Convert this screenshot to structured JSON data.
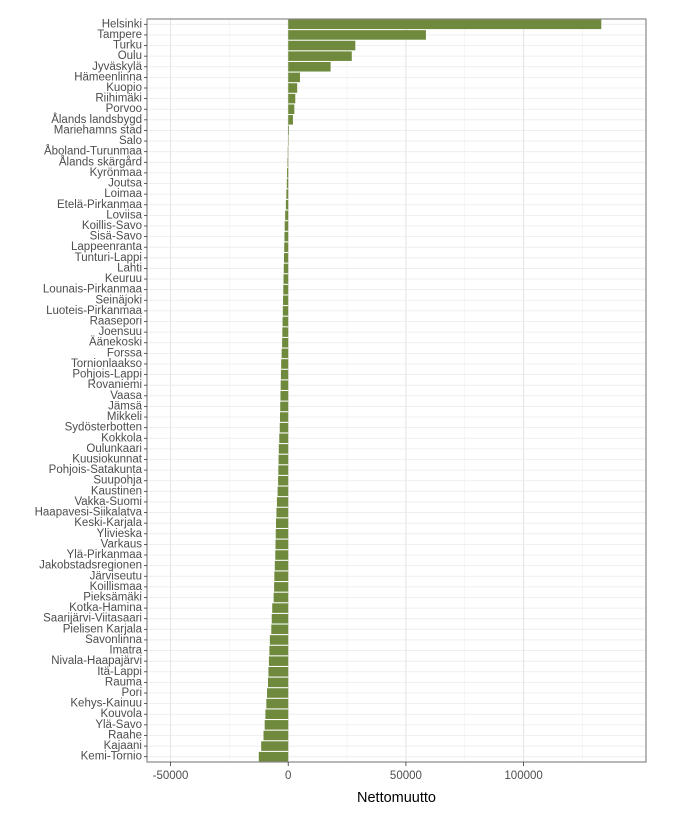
{
  "chart_data": {
    "type": "bar",
    "orientation": "horizontal",
    "xlabel": "Nettomuutto",
    "ylabel": "",
    "title": "",
    "xlim": [
      -60000,
      152000
    ],
    "x_ticks": [
      -50000,
      0,
      50000,
      100000
    ],
    "x_tick_labels": [
      "-50000",
      "0",
      "50000",
      "100000"
    ],
    "grid": true,
    "bar_color": "#6f8a3c",
    "categories": [
      "Helsinki",
      "Tampere",
      "Turku",
      "Oulu",
      "Jyväskylä",
      "Hämeenlinna",
      "Kuopio",
      "Riihimäki",
      "Porvoo",
      "Ålands landsbygd",
      "Mariehamns stad",
      "Salo",
      "Åboland-Turunmaa",
      "Ålands skärgård",
      "Kyrönmaa",
      "Joutsa",
      "Loimaa",
      "Etelä-Pirkanmaa",
      "Loviisa",
      "Koillis-Savo",
      "Sisä-Savo",
      "Lappeenranta",
      "Tunturi-Lappi",
      "Lahti",
      "Keuruu",
      "Lounais-Pirkanmaa",
      "Seinäjoki",
      "Luoteis-Pirkanmaa",
      "Raasepori",
      "Joensuu",
      "Äänekoski",
      "Forssa",
      "Tornionlaakso",
      "Pohjois-Lappi",
      "Rovaniemi",
      "Vaasa",
      "Jämsä",
      "Mikkeli",
      "Sydösterbotten",
      "Kokkola",
      "Oulunkaari",
      "Kuusiokunnat",
      "Pohjois-Satakunta",
      "Suupohja",
      "Kaustinen",
      "Vakka-Suomi",
      "Haapavesi-Siikalatva",
      "Keski-Karjala",
      "Ylivieska",
      "Varkaus",
      "Ylä-Pirkanmaa",
      "Jakobstadsregionen",
      "Järviseutu",
      "Koillismaa",
      "Pieksämäki",
      "Kotka-Hamina",
      "Saarijärvi-Viitasaari",
      "Pielisen Karjala",
      "Savonlinna",
      "Imatra",
      "Nivala-Haapajärvi",
      "Itä-Lappi",
      "Rauma",
      "Pori",
      "Kehys-Kainuu",
      "Kouvola",
      "Ylä-Savo",
      "Raahe",
      "Kajaani",
      "Kemi-Tornio"
    ],
    "values": [
      133000,
      58500,
      28500,
      27000,
      18000,
      5000,
      3800,
      3000,
      2600,
      2000,
      300,
      100,
      -200,
      -300,
      -500,
      -600,
      -800,
      -1000,
      -1300,
      -1500,
      -1600,
      -1700,
      -1800,
      -1900,
      -2000,
      -2100,
      -2200,
      -2300,
      -2400,
      -2500,
      -2600,
      -2800,
      -3000,
      -3100,
      -3200,
      -3300,
      -3400,
      -3500,
      -3600,
      -3800,
      -4000,
      -4100,
      -4200,
      -4300,
      -4500,
      -4800,
      -5000,
      -5200,
      -5300,
      -5400,
      -5500,
      -5700,
      -5900,
      -6000,
      -6200,
      -6800,
      -7000,
      -7200,
      -7800,
      -8000,
      -8200,
      -8400,
      -8600,
      -9000,
      -9300,
      -9700,
      -10000,
      -10500,
      -11500,
      -12500
    ]
  }
}
